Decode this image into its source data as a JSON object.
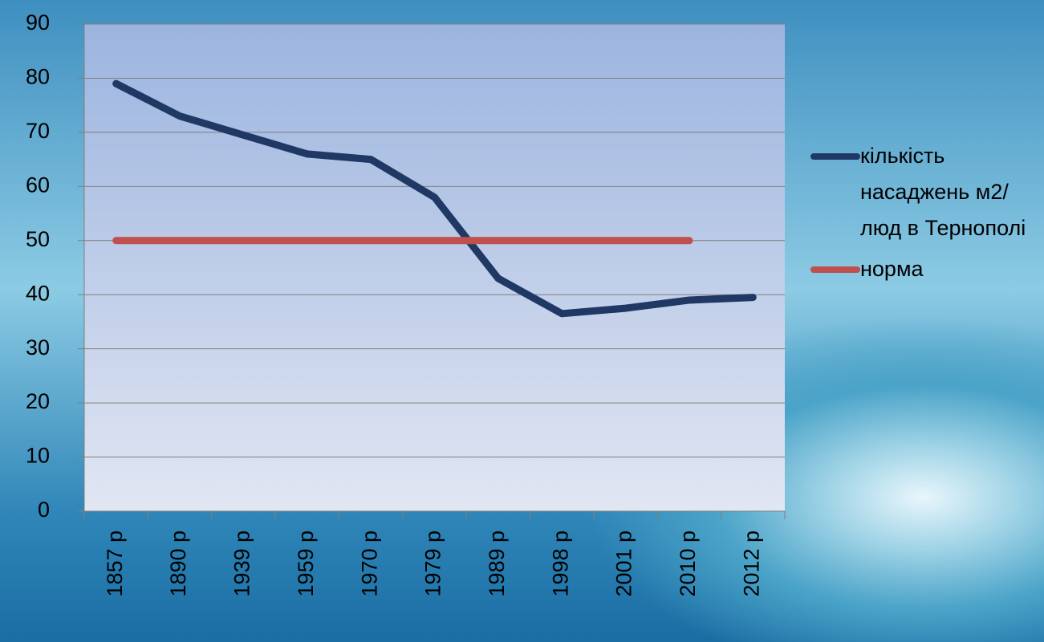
{
  "chart_data": {
    "type": "line",
    "categories": [
      "1857 р",
      "1890 р",
      "1939 р",
      "1959 р",
      "1970 р",
      "1979 р",
      "1989 р",
      "1998 р",
      "2001 р",
      "2010 р",
      "2012 р"
    ],
    "series": [
      {
        "name": "кількість насаджень м2/люд в Тернополі",
        "color": "#1f3864",
        "values": [
          79,
          73,
          69.5,
          66,
          65,
          58,
          43,
          36.5,
          37.5,
          39,
          39.5
        ]
      },
      {
        "name": "норма",
        "color": "#c0504d",
        "values": [
          50,
          50,
          50,
          50,
          50,
          50,
          50,
          50,
          50,
          50,
          null
        ]
      }
    ],
    "ylim": [
      0,
      90
    ],
    "yticks": [
      0,
      10,
      20,
      30,
      40,
      50,
      60,
      70,
      80,
      90
    ],
    "grid": true,
    "legend": "right"
  }
}
